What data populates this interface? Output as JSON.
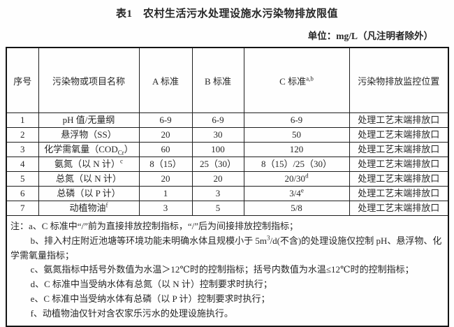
{
  "title": "表1　农村生活污水处理设施水污染物排放限值",
  "unit_note": "单位：mg/L（凡注明者除外）",
  "table": {
    "headers": {
      "seq": "序号",
      "name": "污染物或项目名称",
      "a": "A 标准",
      "b": "B 标准",
      "c": "C 标准^{a,b}",
      "location": "污染物排放监控位置"
    },
    "rows": [
      {
        "no": "1",
        "name": "pH 值/无量纲",
        "a": "6-9",
        "b": "6-9",
        "c": "6-9",
        "location": "处理工艺末端排放口"
      },
      {
        "no": "2",
        "name": "悬浮物（SS）",
        "a": "20",
        "b": "30",
        "c": "50",
        "location": "处理工艺末端排放口"
      },
      {
        "no": "3",
        "name": "化学需氧量（COD_{Cr}）",
        "a": "60",
        "b": "100",
        "c": "120",
        "location": "处理工艺末端排放口"
      },
      {
        "no": "4",
        "name": "氨氮（以 N 计）^{c}",
        "a": "8（15）",
        "b": "25（30）",
        "c": "8（15）/25（30）",
        "location": "处理工艺末端排放口"
      },
      {
        "no": "5",
        "name": "总氮（以 N 计）",
        "a": "20",
        "b": "20",
        "c": "20/30^{d}",
        "location": "处理工艺末端排放口"
      },
      {
        "no": "6",
        "name": "总磷（以 P 计）",
        "a": "1",
        "b": "3",
        "c": "3/4^{e}",
        "location": "处理工艺末端排放口"
      },
      {
        "no": "7",
        "name": "动植物油^{f}",
        "a": "3",
        "b": "5",
        "c": "5/8",
        "location": "处理工艺末端排放口"
      }
    ],
    "notes": [
      "注：a、C 标准中“/”前为直接排放控制指标，“/”后为间接排放控制指标；",
      "b、排入村庄附近池塘等环境功能未明确水体且规模小于 5m^{3}/d(不含)的处理设施仅控制 pH、悬浮物、化学需氧量指标；",
      "c、氨氮指标中括号外数值为水温＞12℃时的控制指标；括号内数值为水温≤12℃时的控制指标；",
      "d、C 标准中当受纳水体有总氮（以 N 计）控制要求时执行；",
      "e、C 标准中当受纳水体有总磷（以 P 计）控制要求时执行；",
      "f、动植物油仅针对含农家乐污水的处理设施执行。"
    ]
  }
}
